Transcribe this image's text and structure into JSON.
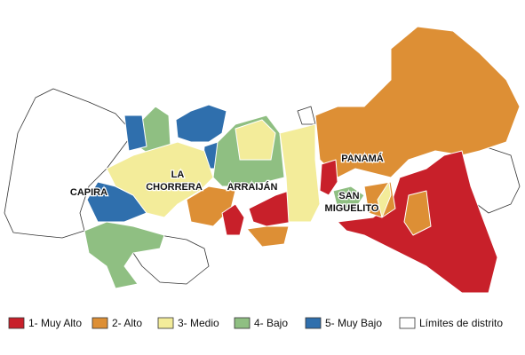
{
  "map": {
    "districts": [
      {
        "lines": [
          "CAPIRA"
        ]
      },
      {
        "lines": [
          "LA",
          "CHORRERA"
        ]
      },
      {
        "lines": [
          "ARRAIJÁN"
        ]
      },
      {
        "lines": [
          "PANAMÁ"
        ]
      },
      {
        "lines": [
          "SAN",
          "MIGUELITO"
        ]
      }
    ],
    "legend": [
      {
        "label": "1- Muy Alto",
        "color": "#c8202a"
      },
      {
        "label": "2- Alto",
        "color": "#dd8f35"
      },
      {
        "label": "3- Medio",
        "color": "#f3ec9a"
      },
      {
        "label": "4- Bajo",
        "color": "#8fbf82"
      },
      {
        "label": "5- Muy Bajo",
        "color": "#2f6fad"
      },
      {
        "label": "Límites de distrito",
        "color": "#ffffff"
      }
    ]
  }
}
